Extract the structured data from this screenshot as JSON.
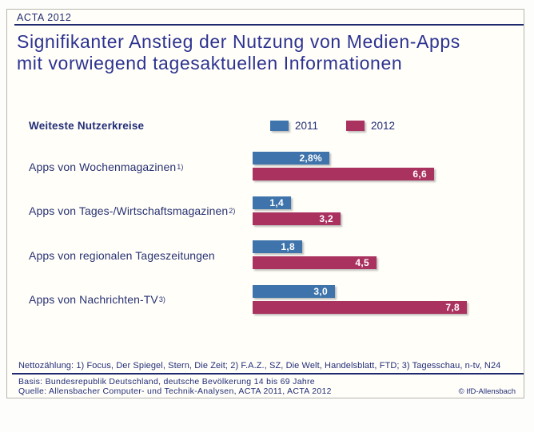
{
  "header": {
    "eyebrow": "ACTA 2012"
  },
  "title": {
    "line1": "Signifikanter Anstieg der Nutzung von Medien-Apps",
    "line2": "mit vorwiegend tagesaktuellen Informationen"
  },
  "legend": {
    "caption": "Weiteste Nutzerkreise",
    "series": [
      {
        "name": "2011",
        "color": "#3e74ab"
      },
      {
        "name": "2012",
        "color": "#aa325f"
      }
    ]
  },
  "chart_data": {
    "type": "bar",
    "orientation": "horizontal",
    "title": "Weiteste Nutzerkreise",
    "unit": "%",
    "xlim": [
      0,
      9
    ],
    "grid": false,
    "legend_position": "top",
    "categories": [
      "Apps von Wochenmagazinen",
      "Apps von Tages-/Wirtschaftsmagazinen",
      "Apps von regionalen Tageszeitungen",
      "Apps von Nachrichten-TV"
    ],
    "series": [
      {
        "name": "2011",
        "color": "#3e74ab",
        "values": [
          2.8,
          1.4,
          1.8,
          3.0
        ]
      },
      {
        "name": "2012",
        "color": "#aa325f",
        "values": [
          6.6,
          3.2,
          4.5,
          7.8
        ]
      }
    ],
    "rows": [
      {
        "label": "Apps von Wochenmagazinen",
        "sup": "1)",
        "v2011": 2.8,
        "v2012": 6.6,
        "label2011": "2,8%",
        "label2012": "6,6"
      },
      {
        "label": "Apps von Tages-/Wirtschaftsmagazinen",
        "sup": "2)",
        "v2011": 1.4,
        "v2012": 3.2,
        "label2011": "1,4",
        "label2012": "3,2"
      },
      {
        "label": "Apps von regionalen Tageszeitungen",
        "sup": "",
        "v2011": 1.8,
        "v2012": 4.5,
        "label2011": "1,8",
        "label2012": "4,5"
      },
      {
        "label": "Apps von Nachrichten-TV",
        "sup": "3)",
        "v2011": 3.0,
        "v2012": 7.8,
        "label2011": "3,0",
        "label2012": "7,8"
      }
    ]
  },
  "footnotes": {
    "netto": "Nettozählung: 1) Focus, Der Spiegel, Stern, Die Zeit; 2) F.A.Z., SZ, Die Welt, Handelsblatt, FTD; 3) Tagesschau, n-tv, N24"
  },
  "footer": {
    "basis": "Basis: Bundesrepublik Deutschland, deutsche Bevölkerung 14 bis 69 Jahre",
    "quelle": "Quelle: Allensbacher Computer- und Technik-Analysen, ACTA 2011, ACTA 2012",
    "copyright": "© IfD-Allensbach"
  }
}
